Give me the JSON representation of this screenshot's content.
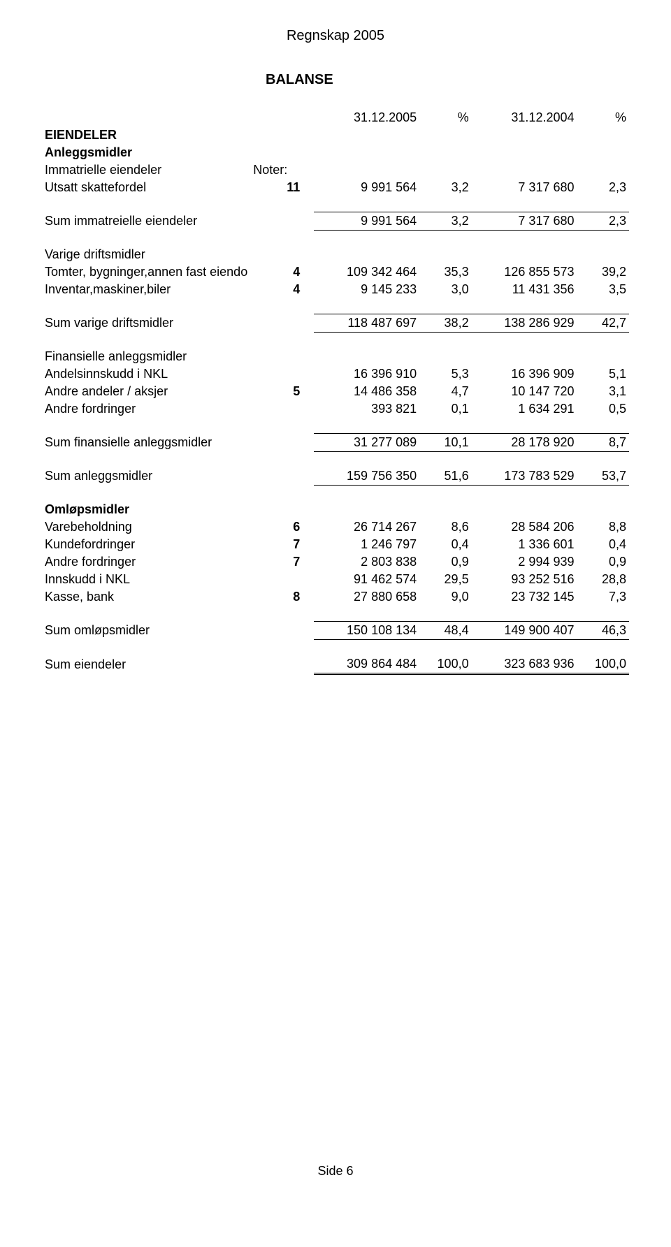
{
  "document": {
    "title": "Regnskap 2005",
    "section": "BALANSE",
    "footer": "Side 6"
  },
  "header": {
    "date1": "31.12.2005",
    "pct1": "%",
    "date2": "31.12.2004",
    "pct2": "%"
  },
  "labels": {
    "eiendeler": "EIENDELER",
    "anleggsmidler": "Anleggsmidler",
    "immatrielle": "Immatrielle eiendeler",
    "noter": "Noter:",
    "utsatt": "Utsatt skattefordel",
    "sum_immat": "Sum immatreielle eiendeler",
    "varige": "Varige driftsmidler",
    "tomter": "Tomter, bygninger,annen fast eiendo",
    "inventar": "Inventar,maskiner,biler",
    "sum_varige": "Sum varige driftsmidler",
    "finans": "Finansielle anleggsmidler",
    "andels_nkl": "Andelsinnskudd i NKL",
    "andre_andeler": "Andre andeler / aksjer",
    "andre_fordringer": "Andre fordringer",
    "sum_finans": "Sum finansielle anleggsmidler",
    "sum_anlegg": "Sum anleggsmidler",
    "omlop": "Omløpsmidler",
    "varebehold": "Varebeholdning",
    "kundeford": "Kundefordringer",
    "andre_ford2": "Andre fordringer",
    "innskudd_nkl": "Innskudd i NKL",
    "kasse": "Kasse, bank",
    "sum_omlop": "Sum omløpsmidler",
    "sum_eiendeler": "Sum eiendeler"
  },
  "rows": {
    "utsatt": {
      "note": "11",
      "v1": "9 991 564",
      "p1": "3,2",
      "v2": "7 317 680",
      "p2": "2,3"
    },
    "sum_immat": {
      "note": "",
      "v1": "9 991 564",
      "p1": "3,2",
      "v2": "7 317 680",
      "p2": "2,3"
    },
    "tomter": {
      "note": "4",
      "v1": "109 342 464",
      "p1": "35,3",
      "v2": "126 855 573",
      "p2": "39,2"
    },
    "inventar": {
      "note": "4",
      "v1": "9 145 233",
      "p1": "3,0",
      "v2": "11 431 356",
      "p2": "3,5"
    },
    "sum_varige": {
      "note": "",
      "v1": "118 487 697",
      "p1": "38,2",
      "v2": "138 286 929",
      "p2": "42,7"
    },
    "andels_nkl": {
      "note": "",
      "v1": "16 396 910",
      "p1": "5,3",
      "v2": "16 396 909",
      "p2": "5,1"
    },
    "andre_andeler": {
      "note": "5",
      "v1": "14 486 358",
      "p1": "4,7",
      "v2": "10 147 720",
      "p2": "3,1"
    },
    "andre_ford": {
      "note": "",
      "v1": "393 821",
      "p1": "0,1",
      "v2": "1 634 291",
      "p2": "0,5"
    },
    "sum_finans": {
      "note": "",
      "v1": "31 277 089",
      "p1": "10,1",
      "v2": "28 178 920",
      "p2": "8,7"
    },
    "sum_anlegg": {
      "note": "",
      "v1": "159 756 350",
      "p1": "51,6",
      "v2": "173 783 529",
      "p2": "53,7"
    },
    "varebehold": {
      "note": "6",
      "v1": "26 714 267",
      "p1": "8,6",
      "v2": "28 584 206",
      "p2": "8,8"
    },
    "kundeford": {
      "note": "7",
      "v1": "1 246 797",
      "p1": "0,4",
      "v2": "1 336 601",
      "p2": "0,4"
    },
    "andre_ford2": {
      "note": "7",
      "v1": "2 803 838",
      "p1": "0,9",
      "v2": "2 994 939",
      "p2": "0,9"
    },
    "innskudd_nkl": {
      "note": "",
      "v1": "91 462 574",
      "p1": "29,5",
      "v2": "93 252 516",
      "p2": "28,8"
    },
    "kasse": {
      "note": "8",
      "v1": "27 880 658",
      "p1": "9,0",
      "v2": "23 732 145",
      "p2": "7,3"
    },
    "sum_omlop": {
      "note": "",
      "v1": "150 108 134",
      "p1": "48,4",
      "v2": "149 900 407",
      "p2": "46,3"
    },
    "sum_eiendeler": {
      "note": "",
      "v1": "309 864 484",
      "p1": "100,0",
      "v2": "323 683 936",
      "p2": "100,0"
    }
  }
}
